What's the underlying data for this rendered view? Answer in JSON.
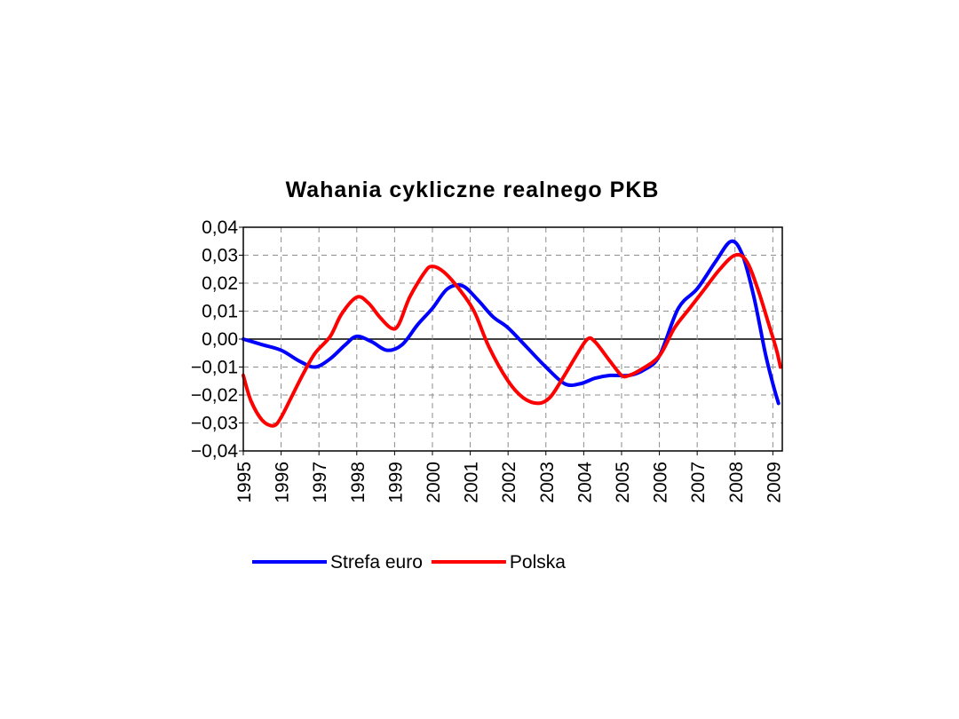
{
  "chart_data": {
    "type": "line",
    "title": "Wahania cykliczne realnego PKB",
    "xlabel": "",
    "ylabel": "",
    "xlim": [
      1995,
      2009.25
    ],
    "ylim": [
      -0.04,
      0.04
    ],
    "yticks": [
      0.04,
      0.03,
      0.02,
      0.01,
      0.0,
      -0.01,
      -0.02,
      -0.03,
      -0.04
    ],
    "ytick_labels": [
      "0,04",
      "0,03",
      "0,02",
      "0,01",
      "0,00",
      "−0,01",
      "−0,02",
      "−0,03",
      "−0,04"
    ],
    "xtick_labels": [
      "1995",
      "1996",
      "1997",
      "1998",
      "1999",
      "2000",
      "2001",
      "2002",
      "2003",
      "2004",
      "2005",
      "2006",
      "2007",
      "2008",
      "2009"
    ],
    "grid": true,
    "legend_position": "bottom",
    "series": [
      {
        "name": "Strefa euro",
        "color": "#0000ff",
        "x": [
          1995.0,
          1995.5,
          1996.0,
          1996.5,
          1996.9,
          1997.3,
          1997.7,
          1998.0,
          1998.4,
          1998.8,
          1999.2,
          1999.6,
          2000.0,
          2000.4,
          2000.8,
          2001.2,
          2001.6,
          2002.0,
          2002.5,
          2003.0,
          2003.5,
          2003.9,
          2004.3,
          2004.7,
          2005.2,
          2005.6,
          2006.0,
          2006.5,
          2007.0,
          2007.5,
          2007.9,
          2008.2,
          2008.5,
          2008.8,
          2009.0,
          2009.15
        ],
        "y": [
          0.0,
          -0.002,
          -0.004,
          -0.008,
          -0.01,
          -0.007,
          -0.002,
          0.001,
          -0.001,
          -0.004,
          -0.002,
          0.005,
          0.011,
          0.018,
          0.019,
          0.014,
          0.008,
          0.004,
          -0.003,
          -0.01,
          -0.016,
          -0.016,
          -0.014,
          -0.013,
          -0.013,
          -0.011,
          -0.006,
          0.011,
          0.018,
          0.028,
          0.035,
          0.03,
          0.015,
          -0.005,
          -0.016,
          -0.023
        ]
      },
      {
        "name": "Polska",
        "color": "#ff0000",
        "x": [
          1995.0,
          1995.2,
          1995.5,
          1995.8,
          1996.0,
          1996.3,
          1996.6,
          1996.9,
          1997.3,
          1997.6,
          1998.0,
          1998.3,
          1998.6,
          1998.9,
          1999.1,
          1999.4,
          1999.8,
          2000.0,
          2000.3,
          2000.7,
          2001.1,
          2001.5,
          2002.0,
          2002.4,
          2002.8,
          2003.1,
          2003.4,
          2003.8,
          2004.1,
          2004.3,
          2004.7,
          2005.0,
          2005.2,
          2005.5,
          2006.0,
          2006.4,
          2006.8,
          2007.2,
          2007.6,
          2008.0,
          2008.3,
          2008.6,
          2008.9,
          2009.1,
          2009.2
        ],
        "y": [
          -0.013,
          -0.022,
          -0.029,
          -0.031,
          -0.028,
          -0.02,
          -0.012,
          -0.005,
          0.001,
          0.009,
          0.015,
          0.013,
          0.008,
          0.004,
          0.005,
          0.015,
          0.024,
          0.026,
          0.024,
          0.018,
          0.01,
          -0.003,
          -0.015,
          -0.021,
          -0.023,
          -0.021,
          -0.015,
          -0.006,
          0.0,
          -0.001,
          -0.008,
          -0.013,
          -0.013,
          -0.011,
          -0.006,
          0.004,
          0.011,
          0.018,
          0.025,
          0.03,
          0.028,
          0.018,
          0.005,
          -0.004,
          -0.01
        ]
      }
    ]
  }
}
